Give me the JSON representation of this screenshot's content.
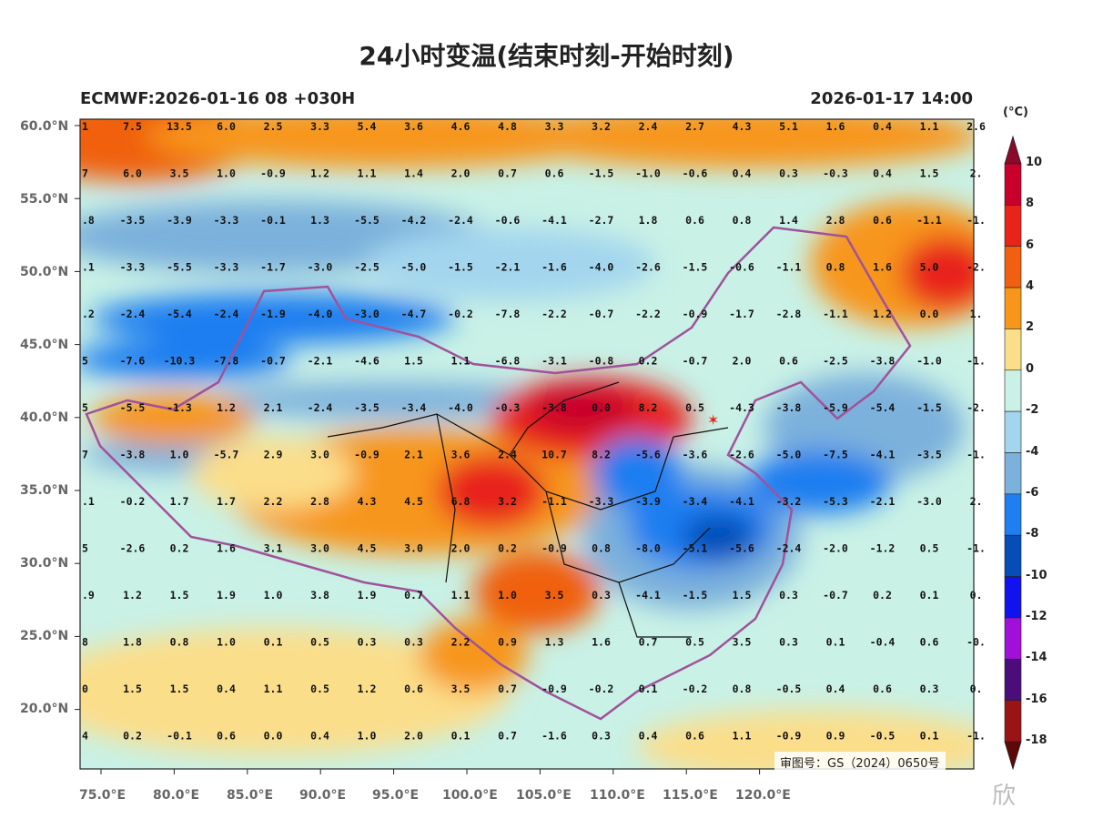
{
  "title": "24小时变温(结束时刻-开始时刻)",
  "subtitle_left": "ECMWF:2026-01-16 08 +030H",
  "subtitle_right": "2026-01-17 14:00",
  "license": "审图号：GS（2024）0650号",
  "watermark": "欣",
  "lat_labels": [
    "60.0°N",
    "55.0°N",
    "50.0°N",
    "45.0°N",
    "40.0°N",
    "35.0°N",
    "30.0°N",
    "25.0°N",
    "20.0°N"
  ],
  "lon_labels": [
    "75.0°E",
    "80.0°E",
    "85.0°E",
    "90.0°E",
    "95.0°E",
    "100.0°E",
    "105.0°E",
    "110.0°E",
    "115.0°E",
    "120.0°E"
  ],
  "colorbar": {
    "unit": "(°C)",
    "ticks": [
      "10",
      "8",
      "6",
      "4",
      "2",
      "0",
      "-2",
      "-4",
      "-6",
      "-8",
      "-10",
      "-12",
      "-14",
      "-16",
      "-18"
    ],
    "colors": [
      "#8b0a2a",
      "#c8002a",
      "#e8231a",
      "#f06010",
      "#f7961a",
      "#fbde8a",
      "#c9f1e6",
      "#a3d6ee",
      "#7cb1dc",
      "#1f7ef0",
      "#064db8",
      "#1212ee",
      "#a010d8",
      "#4b0d7a",
      "#9b1414",
      "#5e0808"
    ]
  },
  "grid_rows": [
    [
      "1",
      "7.5",
      "13.5",
      "6.0",
      "2.5",
      "3.3",
      "5.4",
      "3.6",
      "4.6",
      "4.8",
      "3.3",
      "3.2",
      "2.4",
      "2.7",
      "4.3",
      "5.1",
      "1.6",
      "0.4",
      "1.1",
      "2.6"
    ],
    [
      "7",
      "6.0",
      "3.5",
      "1.0",
      "-0.9",
      "1.2",
      "1.1",
      "1.4",
      "2.0",
      "0.7",
      "0.6",
      "-1.5",
      "-1.0",
      "-0.6",
      "0.4",
      "0.3",
      "-0.3",
      "0.4",
      "1.5",
      "2."
    ],
    [
      ".8",
      "-3.5",
      "-3.9",
      "-3.3",
      "-0.1",
      "1.3",
      "-5.5",
      "-4.2",
      "-2.4",
      "-0.6",
      "-4.1",
      "-2.7",
      "1.8",
      "0.6",
      "0.8",
      "1.4",
      "2.8",
      "0.6",
      "-1.1",
      "-1."
    ],
    [
      ".1",
      "-3.3",
      "-5.5",
      "-3.3",
      "-1.7",
      "-3.0",
      "-2.5",
      "-5.0",
      "-1.5",
      "-2.1",
      "-1.6",
      "-4.0",
      "-2.6",
      "-1.5",
      "-0.6",
      "-1.1",
      "0.8",
      "1.6",
      "5.0",
      "-2."
    ],
    [
      ".2",
      "-2.4",
      "-5.4",
      "-2.4",
      "-1.9",
      "-4.0",
      "-3.0",
      "-4.7",
      "-0.2",
      "-7.8",
      "-2.2",
      "-0.7",
      "-2.2",
      "-0.9",
      "-1.7",
      "-2.8",
      "-1.1",
      "1.2",
      "0.0",
      "1."
    ],
    [
      "5",
      "-7.6",
      "-10.3",
      "-7.8",
      "-0.7",
      "-2.1",
      "-4.6",
      "1.5",
      "1.1",
      "-6.8",
      "-3.1",
      "-0.8",
      "0.2",
      "-0.7",
      "2.0",
      "0.6",
      "-2.5",
      "-3.8",
      "-1.0",
      "-1."
    ],
    [
      "5",
      "-5.5",
      "-1.3",
      "1.2",
      "2.1",
      "-2.4",
      "-3.5",
      "-3.4",
      "-4.0",
      "-0.3",
      "-3.8",
      "0.0",
      "8.2",
      "0.5",
      "-4.3",
      "-3.8",
      "-5.9",
      "-5.4",
      "-1.5",
      "-2."
    ],
    [
      "7",
      "-3.8",
      "1.0",
      "-5.7",
      "2.9",
      "3.0",
      "-0.9",
      "2.1",
      "3.6",
      "2.4",
      "10.7",
      "8.2",
      "-5.6",
      "-3.6",
      "-2.6",
      "-5.0",
      "-7.5",
      "-4.1",
      "-3.5",
      "-1."
    ],
    [
      ".1",
      "-0.2",
      "1.7",
      "1.7",
      "2.2",
      "2.8",
      "4.3",
      "4.5",
      "6.8",
      "3.2",
      "-1.1",
      "-3.3",
      "-3.9",
      "-3.4",
      "-4.1",
      "-3.2",
      "-5.3",
      "-2.1",
      "-3.0",
      "2."
    ],
    [
      "5",
      "-2.6",
      "0.2",
      "1.6",
      "3.1",
      "3.0",
      "4.5",
      "3.0",
      "2.0",
      "0.2",
      "-0.9",
      "0.8",
      "-8.0",
      "-5.1",
      "-5.6",
      "-2.4",
      "-2.0",
      "-1.2",
      "0.5",
      "-1."
    ],
    [
      ".9",
      "1.2",
      "1.5",
      "1.9",
      "1.0",
      "3.8",
      "1.9",
      "0.7",
      "1.1",
      "1.0",
      "3.5",
      "0.3",
      "-4.1",
      "-1.5",
      "1.5",
      "0.3",
      "-0.7",
      "0.2",
      "0.1",
      "0."
    ],
    [
      "8",
      "1.8",
      "0.8",
      "1.0",
      "0.1",
      "0.5",
      "0.3",
      "0.3",
      "2.2",
      "0.9",
      "1.3",
      "1.6",
      "0.7",
      "0.5",
      "3.5",
      "0.3",
      "0.1",
      "-0.4",
      "0.6",
      "-0."
    ],
    [
      "0",
      "1.5",
      "1.5",
      "0.4",
      "1.1",
      "0.5",
      "1.2",
      "0.6",
      "3.5",
      "0.7",
      "-0.9",
      "-0.2",
      "0.1",
      "-0.2",
      "0.8",
      "-0.5",
      "0.4",
      "0.6",
      "0.3",
      "0."
    ],
    [
      "4",
      "0.2",
      "-0.1",
      "0.6",
      "0.0",
      "0.4",
      "1.0",
      "2.0",
      "0.1",
      "0.7",
      "-1.6",
      "0.3",
      "0.4",
      "0.6",
      "1.1",
      "-0.9",
      "0.9",
      "-0.5",
      "0.1",
      "-1."
    ]
  ]
}
